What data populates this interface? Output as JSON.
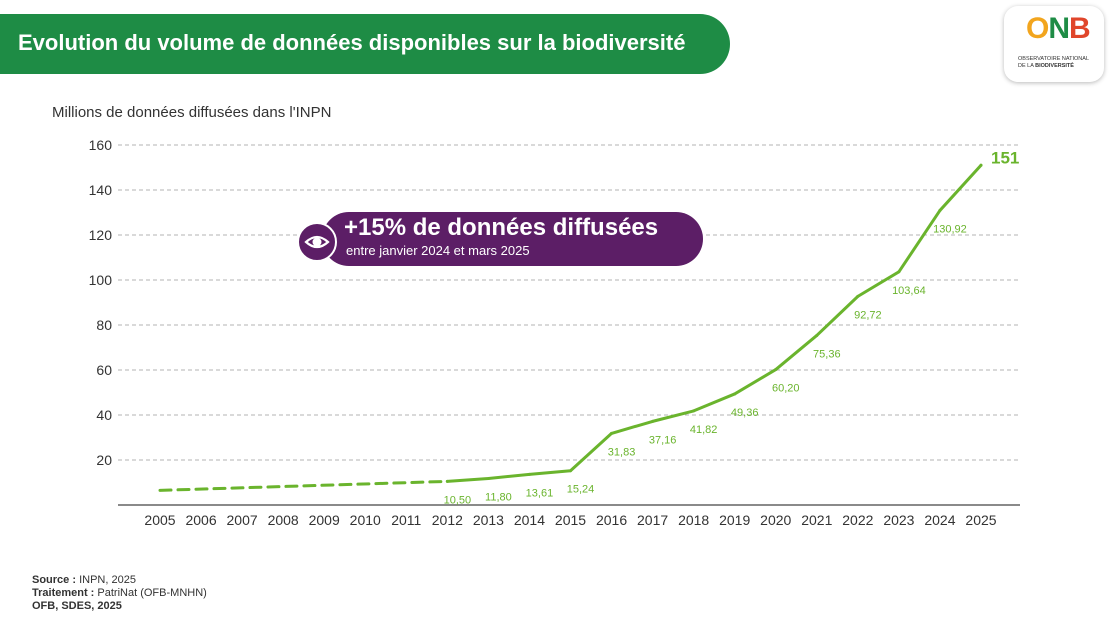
{
  "header": {
    "title": "Evolution du volume de données disponibles sur la biodiversité"
  },
  "logo": {
    "mark_o": "O",
    "mark_n": "N",
    "mark_b": "B",
    "line1": "Observatoire national",
    "line2": "de la",
    "line3": "biodiversité"
  },
  "callout": {
    "icon": "eye-icon",
    "headline": "+15% de données diffusées",
    "subtitle": "entre janvier 2024 et mars 2025"
  },
  "footer": {
    "source_label": "Source :",
    "source_value": "INPN, 2025",
    "processing_label": "Traitement :",
    "processing_value": "PatriNat (OFB-MNHN)",
    "credit": "OFB, SDES, 2025"
  },
  "colors": {
    "banner": "#1e8c45",
    "line": "#6ab42d",
    "callout": "#5c1e66",
    "grid": "#b3b3b3"
  },
  "chart_data": {
    "type": "line",
    "title": "Evolution du volume de données disponibles sur la biodiversité",
    "ylabel": "Millions de données diffusées dans l'INPN",
    "xlabel": "",
    "ylim": [
      0,
      160
    ],
    "yticks": [
      20,
      40,
      60,
      80,
      100,
      120,
      140,
      160
    ],
    "grid": true,
    "x": [
      "2005",
      "2006",
      "2007",
      "2008",
      "2009",
      "2010",
      "2011",
      "2012",
      "2013",
      "2014",
      "2015",
      "2016",
      "2017",
      "2018",
      "2019",
      "2020",
      "2021",
      "2022",
      "2023",
      "2024",
      "2025"
    ],
    "dashed_segment": {
      "x": [
        "2005",
        "2012"
      ],
      "values": [
        6.5,
        10.5
      ],
      "style": "dashed"
    },
    "series": [
      {
        "x": [
          "2012",
          "2013",
          "2014",
          "2015",
          "2016",
          "2017",
          "2018",
          "2019",
          "2020",
          "2021",
          "2022",
          "2023",
          "2024",
          "2025"
        ],
        "values": [
          10.5,
          11.8,
          13.61,
          15.24,
          31.83,
          37.16,
          41.82,
          49.36,
          60.2,
          75.36,
          92.72,
          103.64,
          130.92,
          151
        ],
        "labels": [
          "10,50",
          "11,80",
          "13,61",
          "15,24",
          "31,83",
          "37,16",
          "41,82",
          "49,36",
          "60,20",
          "75,36",
          "92,72",
          "103,64",
          "130,92",
          "151"
        ]
      }
    ]
  }
}
